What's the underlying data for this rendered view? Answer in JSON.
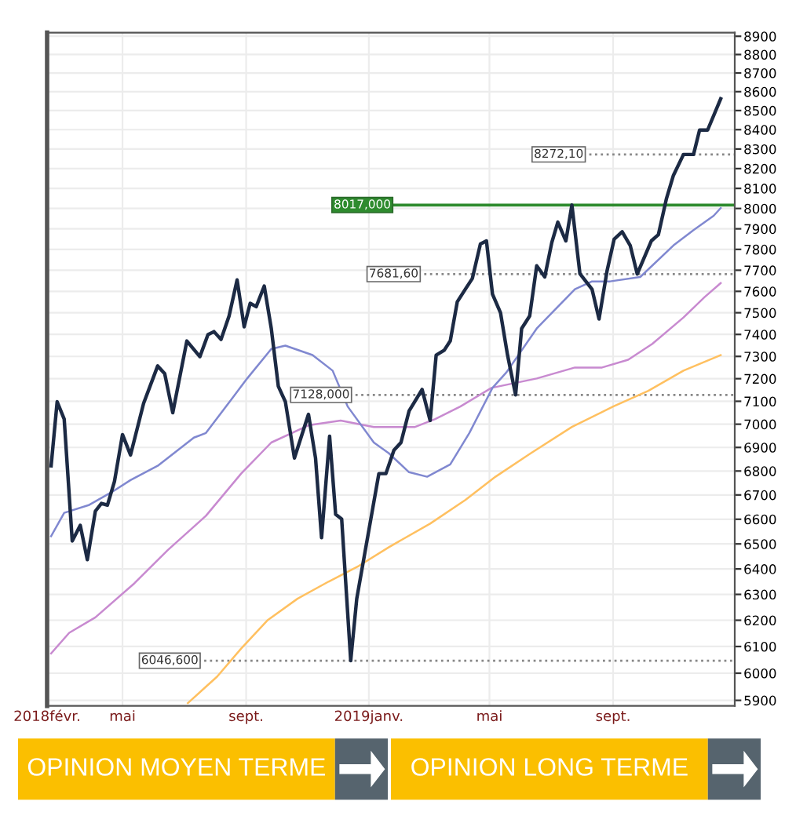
{
  "chart_data": {
    "type": "line",
    "log": true,
    "grid": true,
    "xlim": [
      "2018-02-15",
      "2019-12-31"
    ],
    "ylim": [
      5880,
      8920
    ],
    "xticks": [
      {
        "value": "2018-02-15",
        "label": "2018févr."
      },
      {
        "value": "2018-05-01",
        "label": "mai"
      },
      {
        "value": "2018-09-01",
        "label": "sept."
      },
      {
        "value": "2019-01-01",
        "label": "2019janv."
      },
      {
        "value": "2019-05-01",
        "label": "mai"
      },
      {
        "value": "2019-09-01",
        "label": "sept."
      }
    ],
    "yticks": [
      5900,
      6000,
      6100,
      6200,
      6300,
      6400,
      6500,
      6600,
      6700,
      6800,
      6900,
      7000,
      7100,
      7200,
      7300,
      7400,
      7500,
      7600,
      7700,
      7800,
      7900,
      8000,
      8100,
      8200,
      8300,
      8400,
      8500,
      8600,
      8700,
      8800,
      8900
    ],
    "series": [
      {
        "color": "#ffc060",
        "x": [
          "2018-07-05",
          "2018-08-03",
          "2018-08-27",
          "2018-09-22",
          "2018-10-22",
          "2018-11-22",
          "2018-12-22",
          "2019-01-21",
          "2019-03-03",
          "2019-04-07",
          "2019-05-07",
          "2019-06-11",
          "2019-07-22",
          "2019-09-01",
          "2019-10-06",
          "2019-11-10",
          "2019-12-17"
        ],
        "values": [
          5890,
          5987,
          6092,
          6199,
          6283,
          6350,
          6412,
          6487,
          6582,
          6679,
          6776,
          6875,
          6988,
          7077,
          7146,
          7236,
          7306
        ]
      },
      {
        "color": "#c88ad0",
        "x": [
          "2018-02-19",
          "2018-03-09",
          "2018-04-04",
          "2018-05-13",
          "2018-06-15",
          "2018-07-23",
          "2018-08-27",
          "2018-09-26",
          "2018-11-02",
          "2018-12-04",
          "2019-01-06",
          "2019-02-16",
          "2019-03-08",
          "2019-04-02",
          "2019-05-03",
          "2019-06-17",
          "2019-07-25",
          "2019-08-21",
          "2019-09-16",
          "2019-10-10",
          "2019-11-10",
          "2019-12-01",
          "2019-12-17"
        ],
        "values": [
          6074,
          6152,
          6211,
          6344,
          6475,
          6614,
          6789,
          6921,
          6995,
          7016,
          6988,
          6988,
          7022,
          7077,
          7159,
          7201,
          7250,
          7250,
          7285,
          7357,
          7478,
          7573,
          7639
        ]
      },
      {
        "color": "#8088d0",
        "x": [
          "2018-02-19",
          "2018-03-04",
          "2018-03-29",
          "2018-04-20",
          "2018-05-09",
          "2018-06-05",
          "2018-07-11",
          "2018-07-23",
          "2018-08-12",
          "2018-09-02",
          "2018-09-26",
          "2018-10-10",
          "2018-11-06",
          "2018-11-26",
          "2018-12-11",
          "2019-01-06",
          "2019-01-21",
          "2019-02-10",
          "2019-02-28",
          "2019-03-23",
          "2019-04-11",
          "2019-05-04",
          "2019-05-18",
          "2019-06-17",
          "2019-07-25",
          "2019-08-11",
          "2019-08-29",
          "2019-09-28",
          "2019-10-31",
          "2019-11-20",
          "2019-12-10",
          "2019-12-17"
        ],
        "values": [
          6531,
          6626,
          6659,
          6711,
          6762,
          6822,
          6942,
          6962,
          7077,
          7201,
          7334,
          7349,
          7306,
          7236,
          7077,
          6921,
          6875,
          6795,
          6776,
          6828,
          6962,
          7159,
          7229,
          7427,
          7610,
          7647,
          7647,
          7668,
          7819,
          7894,
          7964,
          8002
        ]
      },
      {
        "color": "#1c2a44",
        "x": [
          "2018-02-19",
          "2018-02-25",
          "2018-03-04",
          "2018-03-12",
          "2018-03-20",
          "2018-03-27",
          "2018-04-04",
          "2018-04-10",
          "2018-04-16",
          "2018-04-23",
          "2018-05-01",
          "2018-05-09",
          "2018-05-22",
          "2018-06-05",
          "2018-06-12",
          "2018-06-20",
          "2018-07-04",
          "2018-07-17",
          "2018-07-25",
          "2018-07-31",
          "2018-08-07",
          "2018-08-15",
          "2018-08-23",
          "2018-08-30",
          "2018-09-05",
          "2018-09-11",
          "2018-09-19",
          "2018-09-26",
          "2018-10-03",
          "2018-10-10",
          "2018-10-19",
          "2018-11-02",
          "2018-11-09",
          "2018-11-15",
          "2018-11-23",
          "2018-11-29",
          "2018-12-05",
          "2018-12-14",
          "2018-12-20",
          "2019-01-11",
          "2019-01-18",
          "2019-01-26",
          "2019-02-02",
          "2019-02-10",
          "2019-02-23",
          "2019-03-03",
          "2019-03-09",
          "2019-03-17",
          "2019-03-23",
          "2019-03-30",
          "2019-04-07",
          "2019-04-14",
          "2019-04-22",
          "2019-04-28",
          "2019-05-04",
          "2019-05-12",
          "2019-05-19",
          "2019-05-27",
          "2019-06-02",
          "2019-06-10",
          "2019-06-17",
          "2019-06-25",
          "2019-07-02",
          "2019-07-08",
          "2019-07-16",
          "2019-07-22",
          "2019-07-30",
          "2019-08-11",
          "2019-08-18",
          "2019-08-26",
          "2019-09-02",
          "2019-09-10",
          "2019-09-18",
          "2019-09-25",
          "2019-10-09",
          "2019-10-16",
          "2019-10-24",
          "2019-10-31",
          "2019-11-10",
          "2019-11-20",
          "2019-11-26",
          "2019-12-04",
          "2019-12-17"
        ],
        "values": [
          6822,
          7098,
          7022,
          6512,
          6575,
          6437,
          6633,
          6665,
          6658,
          6756,
          6955,
          6868,
          7091,
          7257,
          7222,
          7050,
          7370,
          7299,
          7399,
          7413,
          7377,
          7485,
          7654,
          7435,
          7544,
          7528,
          7625,
          7427,
          7166,
          7098,
          6855,
          7043,
          6855,
          6525,
          6948,
          6620,
          6601,
          6047,
          6283,
          6789,
          6789,
          6888,
          6921,
          7057,
          7152,
          7016,
          7306,
          7328,
          7370,
          7551,
          7610,
          7661,
          7826,
          7841,
          7587,
          7500,
          7306,
          7128,
          7427,
          7485,
          7721,
          7668,
          7833,
          7933,
          7841,
          8017,
          7683,
          7610,
          7471,
          7698,
          7849,
          7886,
          7819,
          7682,
          7841,
          7871,
          8048,
          8166,
          8272,
          8272,
          8398,
          8398,
          8562
        ]
      }
    ],
    "ref_lines": [
      {
        "axis": "y",
        "value": 8272.1,
        "label": "8272,10",
        "color": "#888888",
        "line_style": "dotted"
      },
      {
        "axis": "y",
        "value": 8017.0,
        "label": "8017,000",
        "color": "#2e8b2e",
        "line_style": "solid"
      },
      {
        "axis": "y",
        "value": 7681.6,
        "label": "7681,60",
        "color": "#888888",
        "line_style": "dotted"
      },
      {
        "axis": "y",
        "value": 7128.0,
        "label": "7128,000",
        "color": "#888888",
        "line_style": "dotted"
      },
      {
        "axis": "y",
        "value": 6046.6,
        "label": "6046,600",
        "color": "#888888",
        "line_style": "dotted"
      }
    ],
    "annotations": [
      "OPINION MOYEN TERME",
      "OPINION LONG TERME"
    ]
  }
}
